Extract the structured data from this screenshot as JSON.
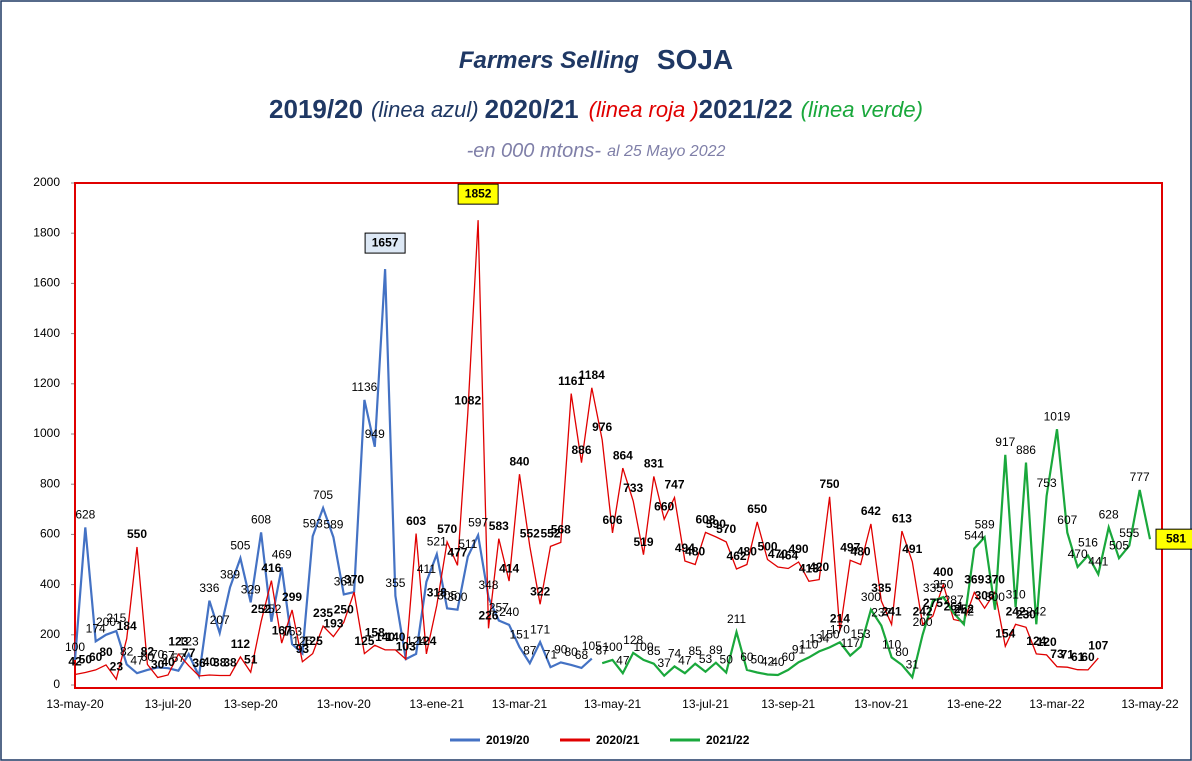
{
  "chart_data": {
    "type": "line",
    "title": [
      "Farmers Selling",
      "SOJA"
    ],
    "subtitle": [
      "2019/20",
      "(linea azul)",
      "2020/21",
      "(linea roja )",
      "2021/22",
      "(linea verde)"
    ],
    "note": [
      "-en 000 mtons-",
      "al 25 Mayo  2022"
    ],
    "categories": [
      "13-may-20",
      null,
      null,
      null,
      null,
      null,
      null,
      null,
      null,
      "13-jul-20",
      null,
      null,
      null,
      null,
      null,
      null,
      null,
      "13-sep-20",
      null,
      null,
      null,
      null,
      null,
      null,
      null,
      null,
      "13-nov-20",
      null,
      null,
      null,
      null,
      null,
      null,
      null,
      null,
      "13-ene-21",
      null,
      null,
      null,
      null,
      null,
      null,
      null,
      "13-mar-21",
      null,
      null,
      null,
      null,
      null,
      null,
      null,
      null,
      "13-may-21",
      null,
      null,
      null,
      null,
      null,
      null,
      null,
      null,
      "13-jul-21",
      null,
      null,
      null,
      null,
      null,
      null,
      null,
      "13-sep-21",
      null,
      null,
      null,
      null,
      null,
      null,
      null,
      null,
      "13-nov-21",
      null,
      null,
      null,
      null,
      null,
      null,
      null,
      null,
      "13-ene-22",
      null,
      null,
      null,
      null,
      null,
      null,
      null,
      "13-mar-22",
      null,
      null,
      null,
      null,
      null,
      null,
      null,
      null,
      "13-may-22"
    ],
    "ylim": [
      0,
      2000
    ],
    "yticks": [
      0,
      200,
      400,
      600,
      800,
      1000,
      1200,
      1400,
      1600,
      1800,
      2000
    ],
    "series": [
      {
        "name": "2019/20",
        "color": "#4472c4",
        "values": [
          100,
          628,
          174,
          200,
          215,
          82,
          47,
          60,
          70,
          67,
          57,
          123,
          36,
          336,
          207,
          389,
          505,
          329,
          608,
          252,
          469,
          163,
          125,
          593,
          705,
          589,
          361,
          370,
          1136,
          949,
          1657,
          355,
          103,
          124,
          411,
          521,
          305,
          300,
          511,
          597,
          348,
          257,
          240,
          151,
          87,
          171,
          71,
          90,
          80,
          68,
          105,
          null,
          null,
          null,
          null,
          null,
          null,
          null,
          null,
          null,
          null,
          null,
          null,
          null,
          null,
          null,
          null,
          null,
          null,
          null,
          null,
          null,
          null,
          null,
          null,
          null,
          null,
          null,
          null,
          null,
          null,
          null,
          null,
          null,
          null,
          null,
          null,
          null,
          null,
          null,
          null,
          null,
          null,
          null,
          null,
          null,
          null,
          null,
          null,
          null,
          null,
          null,
          null,
          null,
          null
        ]
      },
      {
        "name": "2020/21",
        "color": "#e00000",
        "values": [
          42,
          50,
          60,
          80,
          23,
          184,
          550,
          82,
          30,
          40,
          123,
          77,
          36,
          40,
          38,
          38,
          112,
          51,
          252,
          416,
          167,
          299,
          93,
          125,
          235,
          193,
          250,
          370,
          125,
          158,
          140,
          140,
          103,
          603,
          124,
          318,
          570,
          477,
          1082,
          1852,
          226,
          583,
          414,
          840,
          552,
          322,
          552,
          568,
          1161,
          886,
          1184,
          976,
          606,
          864,
          733,
          519,
          831,
          660,
          747,
          494,
          480,
          608,
          590,
          570,
          462,
          480,
          650,
          500,
          470,
          464,
          490,
          413,
          420,
          750,
          214,
          497,
          480,
          642,
          335,
          241,
          613,
          491,
          242,
          275,
          400,
          261,
          252,
          369,
          306,
          370,
          154,
          242,
          230,
          124,
          120,
          73,
          71,
          61,
          60,
          107,
          null,
          null,
          null,
          null,
          null
        ]
      },
      {
        "name": "2021/22",
        "color": "#1aa83c",
        "values": [
          null,
          null,
          null,
          null,
          null,
          null,
          null,
          null,
          null,
          null,
          null,
          null,
          null,
          null,
          null,
          null,
          null,
          null,
          null,
          null,
          null,
          null,
          null,
          null,
          null,
          null,
          null,
          null,
          null,
          null,
          null,
          null,
          null,
          null,
          null,
          null,
          null,
          null,
          null,
          null,
          null,
          null,
          null,
          null,
          null,
          null,
          null,
          null,
          null,
          null,
          null,
          87,
          100,
          47,
          128,
          100,
          85,
          37,
          74,
          47,
          85,
          53,
          89,
          50,
          211,
          60,
          50,
          42,
          40,
          60,
          91,
          110,
          134,
          150,
          170,
          117,
          153,
          300,
          237,
          110,
          80,
          31,
          200,
          335,
          350,
          287,
          242,
          544,
          589,
          300,
          917,
          310,
          886,
          242,
          753,
          1019,
          607,
          470,
          516,
          441,
          628,
          505,
          555,
          777,
          581
        ]
      }
    ]
  }
}
